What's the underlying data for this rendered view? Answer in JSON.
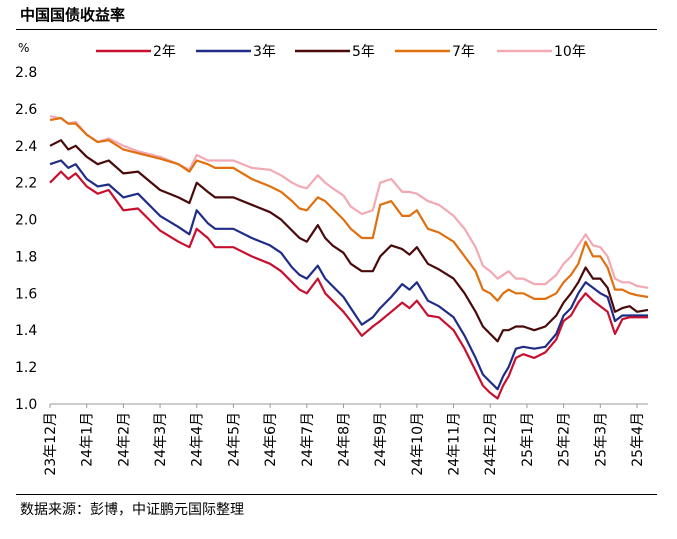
{
  "title": "中国国债收益率",
  "source": "数据来源：彭博，中证鹏元国际整理",
  "chart_data": {
    "type": "line",
    "unit": "%",
    "ylim": [
      1.0,
      2.8
    ],
    "yticks": [
      1.0,
      1.2,
      1.4,
      1.6,
      1.8,
      2.0,
      2.2,
      2.4,
      2.6,
      2.8
    ],
    "xlabels": [
      "23年12月",
      "24年1月",
      "24年2月",
      "24年3月",
      "24年4月",
      "24年5月",
      "24年6月",
      "24年7月",
      "24年8月",
      "24年9月",
      "24年10月",
      "24年11月",
      "24年12月",
      "25年1月",
      "25年2月",
      "25年3月",
      "25年4月"
    ],
    "legend_position": "top",
    "grid": false,
    "series": [
      {
        "name": "2年",
        "color": "#C8102E",
        "points": [
          [
            0,
            2.2
          ],
          [
            0.3,
            2.26
          ],
          [
            0.5,
            2.22
          ],
          [
            0.7,
            2.25
          ],
          [
            1.0,
            2.18
          ],
          [
            1.3,
            2.14
          ],
          [
            1.6,
            2.16
          ],
          [
            2.0,
            2.05
          ],
          [
            2.4,
            2.06
          ],
          [
            3.0,
            1.94
          ],
          [
            3.5,
            1.88
          ],
          [
            3.8,
            1.85
          ],
          [
            4.0,
            1.95
          ],
          [
            4.3,
            1.9
          ],
          [
            4.5,
            1.85
          ],
          [
            5.0,
            1.85
          ],
          [
            5.5,
            1.8
          ],
          [
            6.0,
            1.76
          ],
          [
            6.3,
            1.72
          ],
          [
            6.6,
            1.66
          ],
          [
            6.8,
            1.62
          ],
          [
            7.0,
            1.6
          ],
          [
            7.3,
            1.68
          ],
          [
            7.5,
            1.6
          ],
          [
            7.7,
            1.56
          ],
          [
            8.0,
            1.5
          ],
          [
            8.2,
            1.45
          ],
          [
            8.5,
            1.37
          ],
          [
            8.8,
            1.42
          ],
          [
            9.0,
            1.45
          ],
          [
            9.3,
            1.5
          ],
          [
            9.6,
            1.55
          ],
          [
            9.8,
            1.52
          ],
          [
            10.0,
            1.56
          ],
          [
            10.3,
            1.48
          ],
          [
            10.6,
            1.47
          ],
          [
            11.0,
            1.4
          ],
          [
            11.3,
            1.3
          ],
          [
            11.6,
            1.18
          ],
          [
            11.8,
            1.1
          ],
          [
            12.0,
            1.06
          ],
          [
            12.2,
            1.03
          ],
          [
            12.35,
            1.1
          ],
          [
            12.5,
            1.15
          ],
          [
            12.7,
            1.25
          ],
          [
            12.9,
            1.27
          ],
          [
            13.2,
            1.25
          ],
          [
            13.5,
            1.28
          ],
          [
            13.8,
            1.35
          ],
          [
            14.0,
            1.45
          ],
          [
            14.2,
            1.48
          ],
          [
            14.4,
            1.55
          ],
          [
            14.6,
            1.6
          ],
          [
            14.8,
            1.56
          ],
          [
            15.0,
            1.53
          ],
          [
            15.2,
            1.5
          ],
          [
            15.4,
            1.38
          ],
          [
            15.6,
            1.46
          ],
          [
            15.8,
            1.47
          ],
          [
            16.0,
            1.47
          ],
          [
            16.3,
            1.47
          ]
        ]
      },
      {
        "name": "3年",
        "color": "#1F2D86",
        "points": [
          [
            0,
            2.3
          ],
          [
            0.3,
            2.32
          ],
          [
            0.5,
            2.28
          ],
          [
            0.7,
            2.3
          ],
          [
            1.0,
            2.22
          ],
          [
            1.3,
            2.18
          ],
          [
            1.6,
            2.19
          ],
          [
            2.0,
            2.12
          ],
          [
            2.4,
            2.14
          ],
          [
            3.0,
            2.02
          ],
          [
            3.5,
            1.96
          ],
          [
            3.8,
            1.92
          ],
          [
            4.0,
            2.05
          ],
          [
            4.3,
            1.98
          ],
          [
            4.5,
            1.95
          ],
          [
            5.0,
            1.95
          ],
          [
            5.5,
            1.9
          ],
          [
            6.0,
            1.86
          ],
          [
            6.3,
            1.82
          ],
          [
            6.6,
            1.74
          ],
          [
            6.8,
            1.7
          ],
          [
            7.0,
            1.68
          ],
          [
            7.3,
            1.75
          ],
          [
            7.5,
            1.68
          ],
          [
            7.7,
            1.64
          ],
          [
            8.0,
            1.58
          ],
          [
            8.2,
            1.52
          ],
          [
            8.5,
            1.43
          ],
          [
            8.8,
            1.47
          ],
          [
            9.0,
            1.52
          ],
          [
            9.3,
            1.58
          ],
          [
            9.6,
            1.65
          ],
          [
            9.8,
            1.62
          ],
          [
            10.0,
            1.66
          ],
          [
            10.3,
            1.56
          ],
          [
            10.6,
            1.53
          ],
          [
            11.0,
            1.47
          ],
          [
            11.3,
            1.37
          ],
          [
            11.6,
            1.25
          ],
          [
            11.8,
            1.16
          ],
          [
            12.0,
            1.12
          ],
          [
            12.2,
            1.08
          ],
          [
            12.35,
            1.15
          ],
          [
            12.5,
            1.2
          ],
          [
            12.7,
            1.3
          ],
          [
            12.9,
            1.31
          ],
          [
            13.2,
            1.3
          ],
          [
            13.5,
            1.31
          ],
          [
            13.8,
            1.38
          ],
          [
            14.0,
            1.48
          ],
          [
            14.2,
            1.52
          ],
          [
            14.4,
            1.6
          ],
          [
            14.6,
            1.66
          ],
          [
            14.8,
            1.63
          ],
          [
            15.0,
            1.6
          ],
          [
            15.2,
            1.58
          ],
          [
            15.4,
            1.45
          ],
          [
            15.6,
            1.48
          ],
          [
            15.8,
            1.48
          ],
          [
            16.0,
            1.48
          ],
          [
            16.3,
            1.48
          ]
        ]
      },
      {
        "name": "5年",
        "color": "#4A0A0A",
        "points": [
          [
            0,
            2.4
          ],
          [
            0.3,
            2.43
          ],
          [
            0.5,
            2.38
          ],
          [
            0.7,
            2.4
          ],
          [
            1.0,
            2.34
          ],
          [
            1.3,
            2.3
          ],
          [
            1.6,
            2.32
          ],
          [
            2.0,
            2.25
          ],
          [
            2.4,
            2.26
          ],
          [
            3.0,
            2.16
          ],
          [
            3.5,
            2.12
          ],
          [
            3.8,
            2.09
          ],
          [
            4.0,
            2.2
          ],
          [
            4.3,
            2.15
          ],
          [
            4.5,
            2.12
          ],
          [
            5.0,
            2.12
          ],
          [
            5.5,
            2.08
          ],
          [
            6.0,
            2.04
          ],
          [
            6.3,
            2.0
          ],
          [
            6.6,
            1.94
          ],
          [
            6.8,
            1.9
          ],
          [
            7.0,
            1.88
          ],
          [
            7.3,
            1.97
          ],
          [
            7.5,
            1.9
          ],
          [
            7.7,
            1.86
          ],
          [
            8.0,
            1.82
          ],
          [
            8.2,
            1.76
          ],
          [
            8.5,
            1.72
          ],
          [
            8.8,
            1.72
          ],
          [
            9.0,
            1.8
          ],
          [
            9.3,
            1.86
          ],
          [
            9.6,
            1.84
          ],
          [
            9.8,
            1.81
          ],
          [
            10.0,
            1.85
          ],
          [
            10.3,
            1.76
          ],
          [
            10.6,
            1.73
          ],
          [
            11.0,
            1.68
          ],
          [
            11.3,
            1.6
          ],
          [
            11.6,
            1.5
          ],
          [
            11.8,
            1.42
          ],
          [
            12.0,
            1.38
          ],
          [
            12.2,
            1.34
          ],
          [
            12.35,
            1.4
          ],
          [
            12.5,
            1.4
          ],
          [
            12.7,
            1.42
          ],
          [
            12.9,
            1.42
          ],
          [
            13.2,
            1.4
          ],
          [
            13.5,
            1.42
          ],
          [
            13.8,
            1.48
          ],
          [
            14.0,
            1.55
          ],
          [
            14.2,
            1.6
          ],
          [
            14.4,
            1.66
          ],
          [
            14.6,
            1.74
          ],
          [
            14.8,
            1.68
          ],
          [
            15.0,
            1.68
          ],
          [
            15.2,
            1.63
          ],
          [
            15.4,
            1.5
          ],
          [
            15.6,
            1.52
          ],
          [
            15.8,
            1.53
          ],
          [
            16.0,
            1.5
          ],
          [
            16.3,
            1.51
          ]
        ]
      },
      {
        "name": "7年",
        "color": "#E0700F",
        "points": [
          [
            0,
            2.54
          ],
          [
            0.3,
            2.55
          ],
          [
            0.5,
            2.52
          ],
          [
            0.7,
            2.52
          ],
          [
            1.0,
            2.46
          ],
          [
            1.3,
            2.42
          ],
          [
            1.6,
            2.43
          ],
          [
            2.0,
            2.38
          ],
          [
            2.4,
            2.36
          ],
          [
            3.0,
            2.33
          ],
          [
            3.5,
            2.3
          ],
          [
            3.8,
            2.26
          ],
          [
            4.0,
            2.32
          ],
          [
            4.3,
            2.3
          ],
          [
            4.5,
            2.28
          ],
          [
            5.0,
            2.28
          ],
          [
            5.5,
            2.22
          ],
          [
            6.0,
            2.18
          ],
          [
            6.3,
            2.15
          ],
          [
            6.6,
            2.1
          ],
          [
            6.8,
            2.06
          ],
          [
            7.0,
            2.05
          ],
          [
            7.3,
            2.12
          ],
          [
            7.5,
            2.1
          ],
          [
            7.7,
            2.06
          ],
          [
            8.0,
            2.0
          ],
          [
            8.2,
            1.95
          ],
          [
            8.5,
            1.9
          ],
          [
            8.8,
            1.9
          ],
          [
            9.0,
            2.08
          ],
          [
            9.3,
            2.1
          ],
          [
            9.6,
            2.02
          ],
          [
            9.8,
            2.02
          ],
          [
            10.0,
            2.05
          ],
          [
            10.3,
            1.95
          ],
          [
            10.6,
            1.93
          ],
          [
            11.0,
            1.88
          ],
          [
            11.3,
            1.8
          ],
          [
            11.6,
            1.72
          ],
          [
            11.8,
            1.62
          ],
          [
            12.0,
            1.6
          ],
          [
            12.2,
            1.56
          ],
          [
            12.35,
            1.6
          ],
          [
            12.5,
            1.62
          ],
          [
            12.7,
            1.6
          ],
          [
            12.9,
            1.6
          ],
          [
            13.2,
            1.57
          ],
          [
            13.5,
            1.57
          ],
          [
            13.8,
            1.6
          ],
          [
            14.0,
            1.66
          ],
          [
            14.2,
            1.7
          ],
          [
            14.4,
            1.76
          ],
          [
            14.6,
            1.88
          ],
          [
            14.8,
            1.8
          ],
          [
            15.0,
            1.8
          ],
          [
            15.2,
            1.74
          ],
          [
            15.4,
            1.62
          ],
          [
            15.6,
            1.62
          ],
          [
            15.8,
            1.6
          ],
          [
            16.0,
            1.59
          ],
          [
            16.3,
            1.58
          ]
        ]
      },
      {
        "name": "10年",
        "color": "#F2A9B3",
        "points": [
          [
            0,
            2.56
          ],
          [
            0.3,
            2.55
          ],
          [
            0.5,
            2.52
          ],
          [
            0.7,
            2.53
          ],
          [
            1.0,
            2.46
          ],
          [
            1.3,
            2.42
          ],
          [
            1.6,
            2.44
          ],
          [
            2.0,
            2.4
          ],
          [
            2.4,
            2.37
          ],
          [
            3.0,
            2.34
          ],
          [
            3.5,
            2.3
          ],
          [
            3.8,
            2.27
          ],
          [
            4.0,
            2.35
          ],
          [
            4.3,
            2.32
          ],
          [
            4.5,
            2.32
          ],
          [
            5.0,
            2.32
          ],
          [
            5.5,
            2.28
          ],
          [
            6.0,
            2.27
          ],
          [
            6.3,
            2.24
          ],
          [
            6.6,
            2.2
          ],
          [
            6.8,
            2.18
          ],
          [
            7.0,
            2.17
          ],
          [
            7.3,
            2.24
          ],
          [
            7.5,
            2.2
          ],
          [
            7.7,
            2.17
          ],
          [
            8.0,
            2.13
          ],
          [
            8.2,
            2.07
          ],
          [
            8.5,
            2.03
          ],
          [
            8.8,
            2.05
          ],
          [
            9.0,
            2.2
          ],
          [
            9.3,
            2.22
          ],
          [
            9.6,
            2.15
          ],
          [
            9.8,
            2.15
          ],
          [
            10.0,
            2.14
          ],
          [
            10.3,
            2.1
          ],
          [
            10.6,
            2.08
          ],
          [
            11.0,
            2.02
          ],
          [
            11.3,
            1.95
          ],
          [
            11.6,
            1.85
          ],
          [
            11.8,
            1.75
          ],
          [
            12.0,
            1.72
          ],
          [
            12.2,
            1.68
          ],
          [
            12.35,
            1.7
          ],
          [
            12.5,
            1.72
          ],
          [
            12.7,
            1.68
          ],
          [
            12.9,
            1.68
          ],
          [
            13.2,
            1.65
          ],
          [
            13.5,
            1.65
          ],
          [
            13.8,
            1.7
          ],
          [
            14.0,
            1.76
          ],
          [
            14.2,
            1.8
          ],
          [
            14.4,
            1.86
          ],
          [
            14.6,
            1.92
          ],
          [
            14.8,
            1.86
          ],
          [
            15.0,
            1.85
          ],
          [
            15.2,
            1.8
          ],
          [
            15.4,
            1.68
          ],
          [
            15.6,
            1.66
          ],
          [
            15.8,
            1.66
          ],
          [
            16.0,
            1.64
          ],
          [
            16.3,
            1.63
          ]
        ]
      }
    ]
  }
}
